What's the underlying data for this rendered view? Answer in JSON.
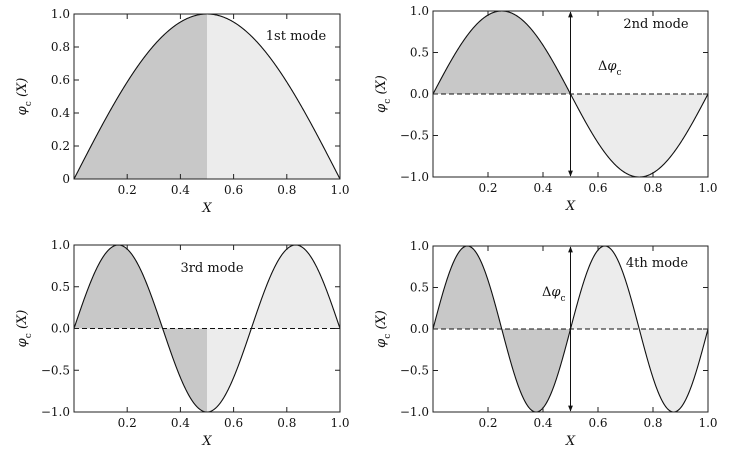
{
  "colors": {
    "left_fill": "#c8c8c8",
    "right_fill": "#ececec",
    "curve": "#111111"
  },
  "chart_data": [
    {
      "type": "area",
      "mode": 1,
      "annotation": "1st mode",
      "xlabel": "X",
      "ylabel": "φc (X)",
      "xlim": [
        0.0,
        1.0
      ],
      "ylim": [
        0.0,
        1.0
      ],
      "xticks": [
        0.2,
        0.4,
        0.6,
        0.8,
        1.0
      ],
      "xtick_labels": [
        "0.2",
        "0.4",
        "0.6",
        "0.8",
        "1.0"
      ],
      "yticks": [
        0,
        0.2,
        0.4,
        0.6,
        0.8,
        1.0
      ],
      "ytick_labels": [
        "0",
        "0.2",
        "0.4",
        "0.6",
        "0.8",
        "1.0"
      ],
      "zero_line": false,
      "split_x": 0.5,
      "delta_label": "",
      "function": "sin(pi*x)",
      "x": [
        0,
        0.1,
        0.2,
        0.3,
        0.4,
        0.5,
        0.6,
        0.7,
        0.8,
        0.9,
        1.0
      ],
      "y": [
        0,
        0.309,
        0.588,
        0.809,
        0.951,
        1.0,
        0.951,
        0.809,
        0.588,
        0.309,
        0
      ]
    },
    {
      "type": "area",
      "mode": 2,
      "annotation": "2nd mode",
      "xlabel": "X",
      "ylabel": "φc (X)",
      "xlim": [
        0.0,
        1.0
      ],
      "ylim": [
        -1.0,
        1.0
      ],
      "xticks": [
        0.2,
        0.4,
        0.6,
        0.8,
        1.0
      ],
      "xtick_labels": [
        "0.2",
        "0.4",
        "0.6",
        "0.8",
        "1.0"
      ],
      "yticks": [
        -1.0,
        -0.5,
        0.0,
        0.5,
        1.0
      ],
      "ytick_labels": [
        "−1.0",
        "−0.5",
        "0.0",
        "0.5",
        "1.0"
      ],
      "zero_line": true,
      "split_x": 0.5,
      "delta_label": "Δφc",
      "function": "sin(2*pi*x)",
      "x": [
        0,
        0.1,
        0.2,
        0.25,
        0.3,
        0.4,
        0.5,
        0.6,
        0.7,
        0.75,
        0.8,
        0.9,
        1.0
      ],
      "y": [
        0,
        0.588,
        0.951,
        1.0,
        0.951,
        0.588,
        0,
        -0.588,
        -0.951,
        -1.0,
        -0.951,
        -0.588,
        0
      ]
    },
    {
      "type": "area",
      "mode": 3,
      "annotation": "3rd mode",
      "xlabel": "X",
      "ylabel": "φc (X)",
      "xlim": [
        0.0,
        1.0
      ],
      "ylim": [
        -1.0,
        1.0
      ],
      "xticks": [
        0.2,
        0.4,
        0.6,
        0.8,
        1.0
      ],
      "xtick_labels": [
        "0.2",
        "0.4",
        "0.6",
        "0.8",
        "1.0"
      ],
      "yticks": [
        -1.0,
        -0.5,
        0.0,
        0.5,
        1.0
      ],
      "ytick_labels": [
        "−1.0",
        "−0.5",
        "0.0",
        "0.5",
        "1.0"
      ],
      "zero_line": true,
      "split_x": 0.5,
      "delta_label": "",
      "function": "sin(3*pi*x)",
      "x": [
        0,
        0.167,
        0.333,
        0.5,
        0.667,
        0.833,
        1.0
      ],
      "y": [
        0,
        1.0,
        0,
        -1.0,
        0,
        1.0,
        0
      ]
    },
    {
      "type": "area",
      "mode": 4,
      "annotation": "4th mode",
      "xlabel": "X",
      "ylabel": "φc (X)",
      "xlim": [
        0.0,
        1.0
      ],
      "ylim": [
        -1.0,
        1.0
      ],
      "xticks": [
        0.2,
        0.4,
        0.6,
        0.8,
        1.0
      ],
      "xtick_labels": [
        "0.2",
        "0.4",
        "0.6",
        "0.8",
        "1.0"
      ],
      "yticks": [
        -1.0,
        -0.5,
        0.0,
        0.5,
        1.0
      ],
      "ytick_labels": [
        "−1.0",
        "−0.5",
        "0.0",
        "0.5",
        "1.0"
      ],
      "zero_line": true,
      "split_x": 0.5,
      "delta_label": "Δφc",
      "function": "sin(4*pi*x)",
      "x": [
        0,
        0.125,
        0.25,
        0.375,
        0.5,
        0.625,
        0.75,
        0.875,
        1.0
      ],
      "y": [
        0,
        1.0,
        0,
        -1.0,
        0,
        1.0,
        0,
        -1.0,
        0
      ]
    }
  ]
}
